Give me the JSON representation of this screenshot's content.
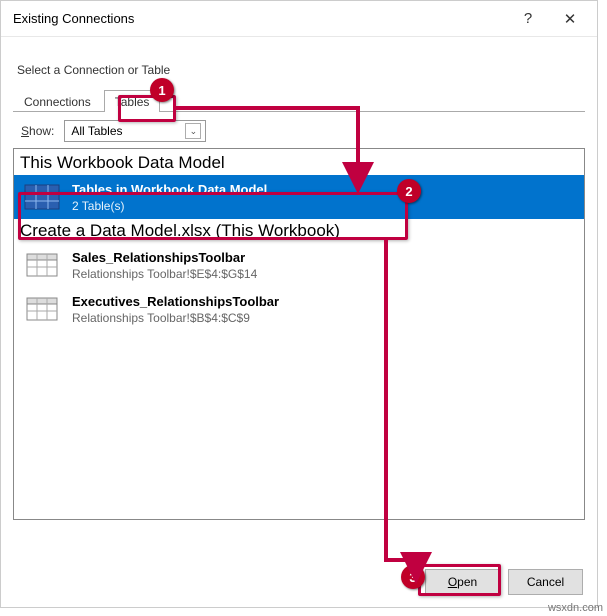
{
  "dialog": {
    "title": "Existing Connections",
    "subtitle": "Select a Connection or Table"
  },
  "tabs": {
    "connections": "Connections",
    "tables": "Tables"
  },
  "show": {
    "label": "Show:",
    "value": "All Tables"
  },
  "sections": {
    "s1": "This Workbook Data Model",
    "s2": "Create a Data Model.xlsx (This Workbook)"
  },
  "items": {
    "dm_title": "Tables in Workbook Data Model",
    "dm_sub": "2 Table(s)",
    "sales_title": "Sales_RelationshipsToolbar",
    "sales_sub": "Relationships Toolbar!$E$4:$G$14",
    "exec_title": "Executives_RelationshipsToolbar",
    "exec_sub": "Relationships Toolbar!$B$4:$C$9"
  },
  "buttons": {
    "open": "Open",
    "cancel": "Cancel"
  },
  "badges": {
    "b1": "1",
    "b2": "2",
    "b3": "3"
  },
  "watermark": "wsxdn.com",
  "colors": {
    "selection": "#0173cd",
    "callout": "#c00040",
    "badge": "#c00028"
  }
}
